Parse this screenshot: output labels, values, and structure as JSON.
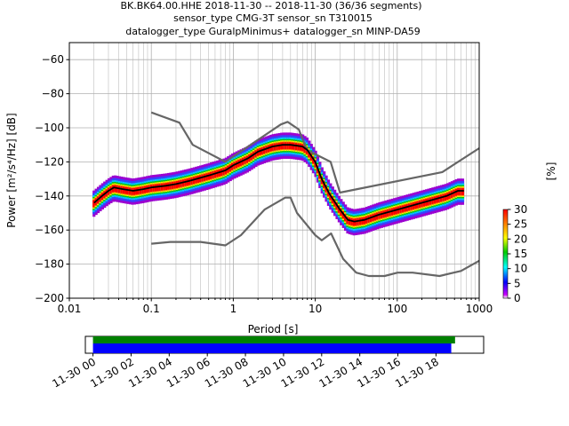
{
  "header": {
    "line1": "BK.BK64.00.HHE   2018-11-30 -- 2018-11-30  (36/36 segments)",
    "line2": "sensor_type CMG-3T sensor_sn T310015",
    "line3": "datalogger_type GuralpMinimus+ datalogger_sn MINP-DA59"
  },
  "chart_data": {
    "type": "heatmap",
    "subtype": "PPSD probabilistic power spectral density",
    "xlabel": "Period [s]",
    "ylabel": "Power [m²/s⁴/Hz] [dB]",
    "xscale": "log",
    "xlim": [
      0.01,
      1000
    ],
    "ylim": [
      -200,
      -50
    ],
    "x_ticks": [
      {
        "v": 0.01,
        "label": "0.01"
      },
      {
        "v": 0.1,
        "label": "0.1"
      },
      {
        "v": 1,
        "label": "1"
      },
      {
        "v": 10,
        "label": "10"
      },
      {
        "v": 100,
        "label": "100"
      },
      {
        "v": 1000,
        "label": "1000"
      }
    ],
    "y_ticks": [
      {
        "v": -60,
        "label": "−60"
      },
      {
        "v": -80,
        "label": "−80"
      },
      {
        "v": -100,
        "label": "−100"
      },
      {
        "v": -120,
        "label": "−120"
      },
      {
        "v": -140,
        "label": "−140"
      },
      {
        "v": -160,
        "label": "−160"
      },
      {
        "v": -180,
        "label": "−180"
      },
      {
        "v": -200,
        "label": "−200"
      }
    ],
    "grid": true,
    "colorbar": {
      "label": "[%]",
      "min": 0,
      "max": 30,
      "ticks": [
        {
          "v": 0,
          "label": "0"
        },
        {
          "v": 5,
          "label": "5"
        },
        {
          "v": 10,
          "label": "10"
        },
        {
          "v": 15,
          "label": "15"
        },
        {
          "v": 20,
          "label": "20"
        },
        {
          "v": 25,
          "label": "25"
        },
        {
          "v": 30,
          "label": "30"
        }
      ]
    },
    "series": [
      {
        "role": "high-noise-model",
        "color": "#666666",
        "points": [
          [
            0.1,
            -91
          ],
          [
            0.22,
            -97
          ],
          [
            0.32,
            -110
          ],
          [
            0.8,
            -120
          ],
          [
            3.8,
            -98
          ],
          [
            4.6,
            -96.5
          ],
          [
            6.3,
            -101
          ],
          [
            7.9,
            -113
          ],
          [
            15.4,
            -120
          ],
          [
            20,
            -138
          ],
          [
            354.8,
            -126
          ],
          [
            1000,
            -112
          ]
        ]
      },
      {
        "role": "low-noise-model",
        "color": "#666666",
        "points": [
          [
            0.1,
            -168
          ],
          [
            0.17,
            -167
          ],
          [
            0.4,
            -167
          ],
          [
            0.8,
            -169
          ],
          [
            1.24,
            -163
          ],
          [
            2.4,
            -148
          ],
          [
            4.3,
            -141
          ],
          [
            5,
            -141
          ],
          [
            6,
            -150
          ],
          [
            10,
            -163
          ],
          [
            12,
            -166
          ],
          [
            15.6,
            -162
          ],
          [
            21.9,
            -177
          ],
          [
            31.6,
            -185
          ],
          [
            45,
            -187
          ],
          [
            70,
            -187
          ],
          [
            101,
            -185
          ],
          [
            154,
            -185
          ],
          [
            328,
            -187
          ],
          [
            600,
            -184
          ],
          [
            1000,
            -178
          ]
        ]
      },
      {
        "role": "mode",
        "color": "#000000",
        "points": [
          [
            0.02,
            -144
          ],
          [
            0.025,
            -140
          ],
          [
            0.03,
            -137
          ],
          [
            0.035,
            -135
          ],
          [
            0.045,
            -136
          ],
          [
            0.06,
            -137
          ],
          [
            0.08,
            -136
          ],
          [
            0.1,
            -135
          ],
          [
            0.15,
            -134
          ],
          [
            0.2,
            -133
          ],
          [
            0.3,
            -131
          ],
          [
            0.5,
            -128
          ],
          [
            0.8,
            -125
          ],
          [
            1,
            -122
          ],
          [
            1.5,
            -118
          ],
          [
            2,
            -114
          ],
          [
            3,
            -111
          ],
          [
            4,
            -110
          ],
          [
            5,
            -110
          ],
          [
            6,
            -110.5
          ],
          [
            7,
            -111
          ],
          [
            8,
            -113
          ],
          [
            10,
            -120
          ],
          [
            12,
            -130
          ],
          [
            15,
            -139
          ],
          [
            20,
            -148
          ],
          [
            25,
            -154
          ],
          [
            30,
            -155
          ],
          [
            40,
            -154
          ],
          [
            60,
            -151
          ],
          [
            100,
            -148
          ],
          [
            200,
            -144
          ],
          [
            400,
            -140
          ],
          [
            550,
            -137
          ],
          [
            650,
            -137
          ]
        ]
      },
      {
        "role": "upper-mode",
        "color": "#9b00d0",
        "points": [
          [
            0.03,
            -127
          ],
          [
            0.05,
            -133
          ],
          [
            0.1,
            -130
          ],
          [
            0.3,
            -127
          ],
          [
            0.6,
            -120
          ],
          [
            1,
            -115
          ],
          [
            1.5,
            -112
          ],
          [
            3,
            -108
          ],
          [
            5,
            -103
          ],
          [
            8,
            -101
          ],
          [
            12,
            -101
          ],
          [
            20,
            -99
          ],
          [
            28,
            -98
          ],
          [
            35,
            -100
          ],
          [
            50,
            -106
          ],
          [
            70,
            -114
          ],
          [
            100,
            -124
          ],
          [
            150,
            -128
          ],
          [
            300,
            -126
          ],
          [
            500,
            -116
          ],
          [
            650,
            -116
          ]
        ]
      }
    ]
  },
  "time_axis": {
    "tick_labels": [
      "11-30 00",
      "11-30 02",
      "11-30 04",
      "11-30 06",
      "11-30 08",
      "11-30 10",
      "11-30 12",
      "11-30 14",
      "11-30 16",
      "11-30 18"
    ],
    "range_hours": [
      -0.4,
      20.5
    ],
    "data_start_hour": 0,
    "data_end_hour": 19.0,
    "processed_end_hour": 18.8,
    "colors": {
      "data": "#008000",
      "processed": "#0000ff"
    }
  }
}
